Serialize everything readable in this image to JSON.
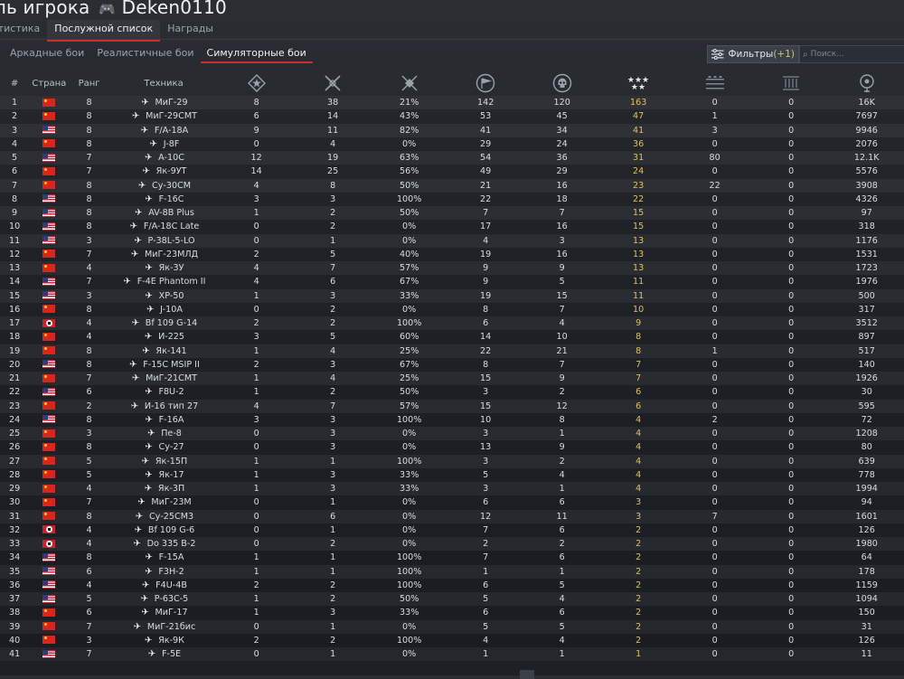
{
  "header": {
    "title_prefix": "ль игрока",
    "player": "Deken0110",
    "gamepad_icon": "gamepad-icon"
  },
  "tabs": [
    {
      "label": "атистика",
      "active": false
    },
    {
      "label": "Послужной список",
      "active": true
    },
    {
      "label": "Награды",
      "active": false
    }
  ],
  "modes": [
    {
      "label": "Аркадные бои",
      "active": false
    },
    {
      "label": "Реалистичные бои",
      "active": false
    },
    {
      "label": "Симуляторные бои",
      "active": true
    }
  ],
  "filters": {
    "label": "Фильтры",
    "count": "(+1)"
  },
  "search": {
    "placeholder": "Поиск..."
  },
  "columns": {
    "num": "#",
    "country": "Страна",
    "rank": "Ранг",
    "vehicle": "Техника",
    "icons": [
      "ground-kills-icon",
      "air-kills-icon",
      "win-rate-icon",
      "missions-flag-icon",
      "deaths-skull-icon",
      "stars-rank-icon",
      "ships-icon",
      "units-icon",
      "respawn-icon"
    ]
  },
  "colors": {
    "accent": "#c9302a",
    "gold": "#e0c15a"
  },
  "rows": [
    [
      "1",
      "cn",
      "8",
      "МиГ-29",
      "8",
      "38",
      "21%",
      "142",
      "120",
      "163",
      "0",
      "0",
      "16K"
    ],
    [
      "2",
      "cn",
      "8",
      "МиГ-29СМТ",
      "6",
      "14",
      "43%",
      "53",
      "45",
      "47",
      "1",
      "0",
      "7697"
    ],
    [
      "3",
      "us",
      "8",
      "F/A-18A",
      "9",
      "11",
      "82%",
      "41",
      "34",
      "41",
      "3",
      "0",
      "9946"
    ],
    [
      "4",
      "cn",
      "8",
      "J-8F",
      "0",
      "4",
      "0%",
      "29",
      "24",
      "36",
      "0",
      "0",
      "2076"
    ],
    [
      "5",
      "us",
      "7",
      "A-10C",
      "12",
      "19",
      "63%",
      "54",
      "36",
      "31",
      "80",
      "0",
      "12.1K"
    ],
    [
      "6",
      "cn",
      "7",
      "Як-9УТ",
      "14",
      "25",
      "56%",
      "49",
      "29",
      "24",
      "0",
      "0",
      "5576"
    ],
    [
      "7",
      "cn",
      "8",
      "Су-30СМ",
      "4",
      "8",
      "50%",
      "21",
      "16",
      "23",
      "22",
      "0",
      "3908"
    ],
    [
      "8",
      "us",
      "8",
      "F-16C",
      "3",
      "3",
      "100%",
      "22",
      "18",
      "22",
      "0",
      "0",
      "4326"
    ],
    [
      "9",
      "us",
      "8",
      "AV-8B Plus",
      "1",
      "2",
      "50%",
      "7",
      "7",
      "15",
      "0",
      "0",
      "97"
    ],
    [
      "10",
      "us",
      "8",
      "F/A-18C Late",
      "0",
      "2",
      "0%",
      "17",
      "16",
      "15",
      "0",
      "0",
      "318"
    ],
    [
      "11",
      "us",
      "3",
      "P-38L-5-LO",
      "0",
      "1",
      "0%",
      "4",
      "3",
      "13",
      "0",
      "0",
      "1176"
    ],
    [
      "12",
      "cn",
      "7",
      "МиГ-23МЛД",
      "2",
      "5",
      "40%",
      "19",
      "16",
      "13",
      "0",
      "0",
      "1531"
    ],
    [
      "13",
      "cn",
      "4",
      "Як-3У",
      "4",
      "7",
      "57%",
      "9",
      "9",
      "13",
      "0",
      "0",
      "1723"
    ],
    [
      "14",
      "us",
      "7",
      "F-4E Phantom II",
      "4",
      "6",
      "67%",
      "9",
      "5",
      "11",
      "0",
      "0",
      "1976"
    ],
    [
      "15",
      "us",
      "3",
      "XP-50",
      "1",
      "3",
      "33%",
      "19",
      "15",
      "11",
      "0",
      "0",
      "500"
    ],
    [
      "16",
      "cn",
      "8",
      "J-10A",
      "0",
      "2",
      "0%",
      "8",
      "7",
      "10",
      "0",
      "0",
      "317"
    ],
    [
      "17",
      "de",
      "4",
      "Bf 109 G-14",
      "2",
      "2",
      "100%",
      "6",
      "4",
      "9",
      "0",
      "0",
      "3512"
    ],
    [
      "18",
      "cn",
      "4",
      "И-225",
      "3",
      "5",
      "60%",
      "14",
      "10",
      "8",
      "0",
      "0",
      "897"
    ],
    [
      "19",
      "cn",
      "8",
      "Як-141",
      "1",
      "4",
      "25%",
      "22",
      "21",
      "8",
      "1",
      "0",
      "517"
    ],
    [
      "20",
      "us",
      "8",
      "F-15C MSIP II",
      "2",
      "3",
      "67%",
      "8",
      "7",
      "7",
      "0",
      "0",
      "140"
    ],
    [
      "21",
      "cn",
      "7",
      "МиГ-21СМТ",
      "1",
      "4",
      "25%",
      "15",
      "9",
      "7",
      "0",
      "0",
      "1926"
    ],
    [
      "22",
      "us",
      "6",
      "F8U-2",
      "1",
      "2",
      "50%",
      "3",
      "2",
      "6",
      "0",
      "0",
      "30"
    ],
    [
      "23",
      "cn",
      "2",
      "И-16 тип 27",
      "4",
      "7",
      "57%",
      "15",
      "12",
      "6",
      "0",
      "0",
      "595"
    ],
    [
      "24",
      "us",
      "8",
      "F-16A",
      "3",
      "3",
      "100%",
      "10",
      "8",
      "4",
      "2",
      "0",
      "72"
    ],
    [
      "25",
      "cn",
      "3",
      "Пе-8",
      "0",
      "3",
      "0%",
      "3",
      "1",
      "4",
      "0",
      "0",
      "1208"
    ],
    [
      "26",
      "cn",
      "8",
      "Су-27",
      "0",
      "3",
      "0%",
      "13",
      "9",
      "4",
      "0",
      "0",
      "80"
    ],
    [
      "27",
      "cn",
      "5",
      "Як-15П",
      "1",
      "1",
      "100%",
      "3",
      "2",
      "4",
      "0",
      "0",
      "639"
    ],
    [
      "28",
      "cn",
      "5",
      "Як-17",
      "1",
      "3",
      "33%",
      "5",
      "4",
      "4",
      "0",
      "0",
      "778"
    ],
    [
      "29",
      "cn",
      "4",
      "Як-3П",
      "1",
      "3",
      "33%",
      "3",
      "1",
      "4",
      "0",
      "0",
      "1994"
    ],
    [
      "30",
      "cn",
      "7",
      "МиГ-23М",
      "0",
      "1",
      "0%",
      "6",
      "6",
      "3",
      "0",
      "0",
      "94"
    ],
    [
      "31",
      "cn",
      "8",
      "Су-25СМ3",
      "0",
      "6",
      "0%",
      "12",
      "11",
      "3",
      "7",
      "0",
      "1601"
    ],
    [
      "32",
      "de",
      "4",
      "Bf 109 G-6",
      "0",
      "1",
      "0%",
      "7",
      "6",
      "2",
      "0",
      "0",
      "126"
    ],
    [
      "33",
      "de",
      "4",
      "Do 335 B-2",
      "0",
      "2",
      "0%",
      "2",
      "2",
      "2",
      "0",
      "0",
      "1980"
    ],
    [
      "34",
      "us",
      "8",
      "F-15A",
      "1",
      "1",
      "100%",
      "7",
      "6",
      "2",
      "0",
      "0",
      "64"
    ],
    [
      "35",
      "us",
      "6",
      "F3H-2",
      "1",
      "1",
      "100%",
      "1",
      "1",
      "2",
      "0",
      "0",
      "178"
    ],
    [
      "36",
      "us",
      "4",
      "F4U-4B",
      "2",
      "2",
      "100%",
      "6",
      "5",
      "2",
      "0",
      "0",
      "1159"
    ],
    [
      "37",
      "us",
      "5",
      "P-63C-5",
      "1",
      "2",
      "50%",
      "5",
      "4",
      "2",
      "0",
      "0",
      "1094"
    ],
    [
      "38",
      "cn",
      "6",
      "МиГ-17",
      "1",
      "3",
      "33%",
      "6",
      "6",
      "2",
      "0",
      "0",
      "150"
    ],
    [
      "39",
      "cn",
      "7",
      "МиГ-21бис",
      "0",
      "1",
      "0%",
      "5",
      "5",
      "2",
      "0",
      "0",
      "31"
    ],
    [
      "40",
      "cn",
      "3",
      "Як-9К",
      "2",
      "2",
      "100%",
      "4",
      "4",
      "2",
      "0",
      "0",
      "126"
    ],
    [
      "41",
      "us",
      "7",
      "F-5E",
      "0",
      "1",
      "0%",
      "1",
      "1",
      "1",
      "0",
      "0",
      "11"
    ]
  ]
}
